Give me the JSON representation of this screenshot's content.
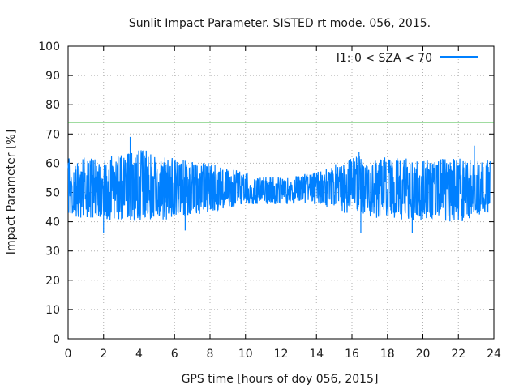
{
  "chart_data": {
    "type": "line",
    "title": "Sunlit Impact Parameter. SISTED rt mode. 056, 2015.",
    "xlabel": "GPS time [hours of doy 056, 2015]",
    "ylabel": "Impact Parameter [%]",
    "xlim": [
      0,
      24
    ],
    "ylim": [
      0,
      100
    ],
    "xticks": [
      "0",
      "2",
      "4",
      "6",
      "8",
      "10",
      "12",
      "14",
      "16",
      "18",
      "20",
      "22",
      "24"
    ],
    "yticks": [
      "0",
      "10",
      "20",
      "30",
      "40",
      "50",
      "60",
      "70",
      "80",
      "90",
      "100"
    ],
    "grid": true,
    "legend_position": "top-right",
    "series": [
      {
        "name": "I1: 0 < SZA < 70",
        "color": "#0080ff",
        "x_range": [
          0,
          23.8
        ],
        "envelope": {
          "x": [
            0,
            2,
            4,
            6,
            8,
            10,
            12,
            14,
            16,
            18,
            20,
            22,
            23.8
          ],
          "mean": [
            51,
            51,
            52,
            51,
            51,
            50,
            51,
            51,
            51,
            51,
            50,
            51,
            50
          ],
          "low": [
            42,
            40,
            40,
            41,
            43,
            46,
            46,
            46,
            42,
            41,
            40,
            40,
            43
          ],
          "high": [
            62,
            62,
            65,
            62,
            60,
            57,
            55,
            57,
            62,
            62,
            62,
            62,
            61
          ]
        },
        "extremes": [
          {
            "x": 3.5,
            "y": 69
          },
          {
            "x": 2.0,
            "y": 36
          },
          {
            "x": 6.6,
            "y": 37
          },
          {
            "x": 16.5,
            "y": 36
          },
          {
            "x": 19.4,
            "y": 36
          },
          {
            "x": 16.4,
            "y": 64
          },
          {
            "x": 22.9,
            "y": 66
          }
        ]
      }
    ],
    "reference_line": {
      "y": 74,
      "color": "#00a000"
    }
  }
}
